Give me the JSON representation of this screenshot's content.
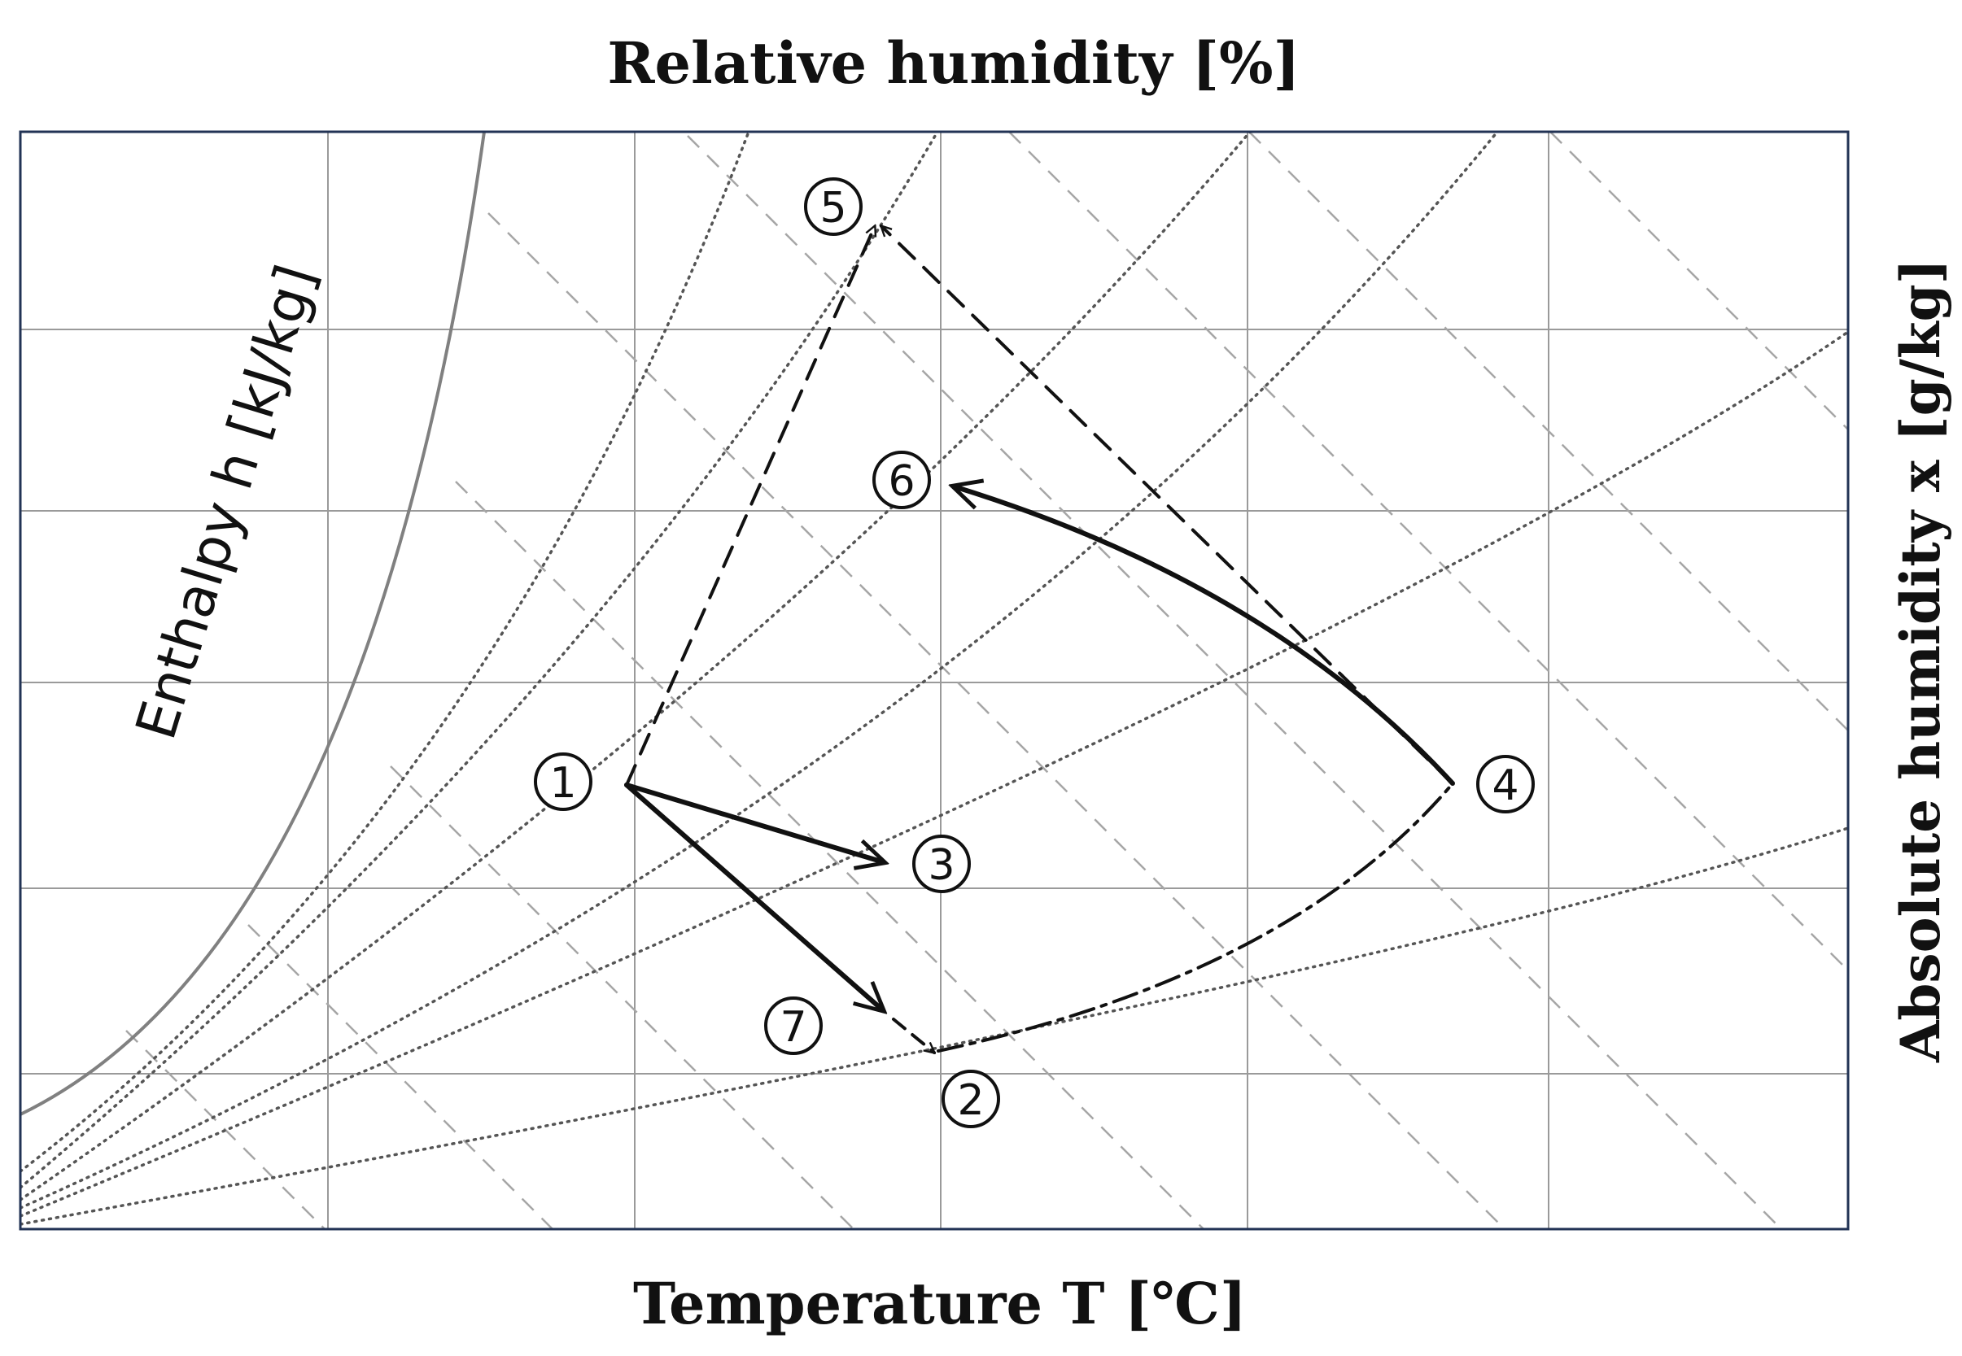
{
  "diagram": {
    "top_label": "Relative humidity [%]",
    "bottom_label": "Temperature T [℃]",
    "left_label": "Enthalpy h [kJ/kg]",
    "right_label": "Absolute humidity x [g/kg]",
    "points": [
      {
        "id": "p1",
        "label": "1"
      },
      {
        "id": "p2",
        "label": "2"
      },
      {
        "id": "p3",
        "label": "3"
      },
      {
        "id": "p4",
        "label": "4"
      },
      {
        "id": "p5",
        "label": "5"
      },
      {
        "id": "p6",
        "label": "6"
      },
      {
        "id": "p7",
        "label": "7"
      }
    ]
  }
}
